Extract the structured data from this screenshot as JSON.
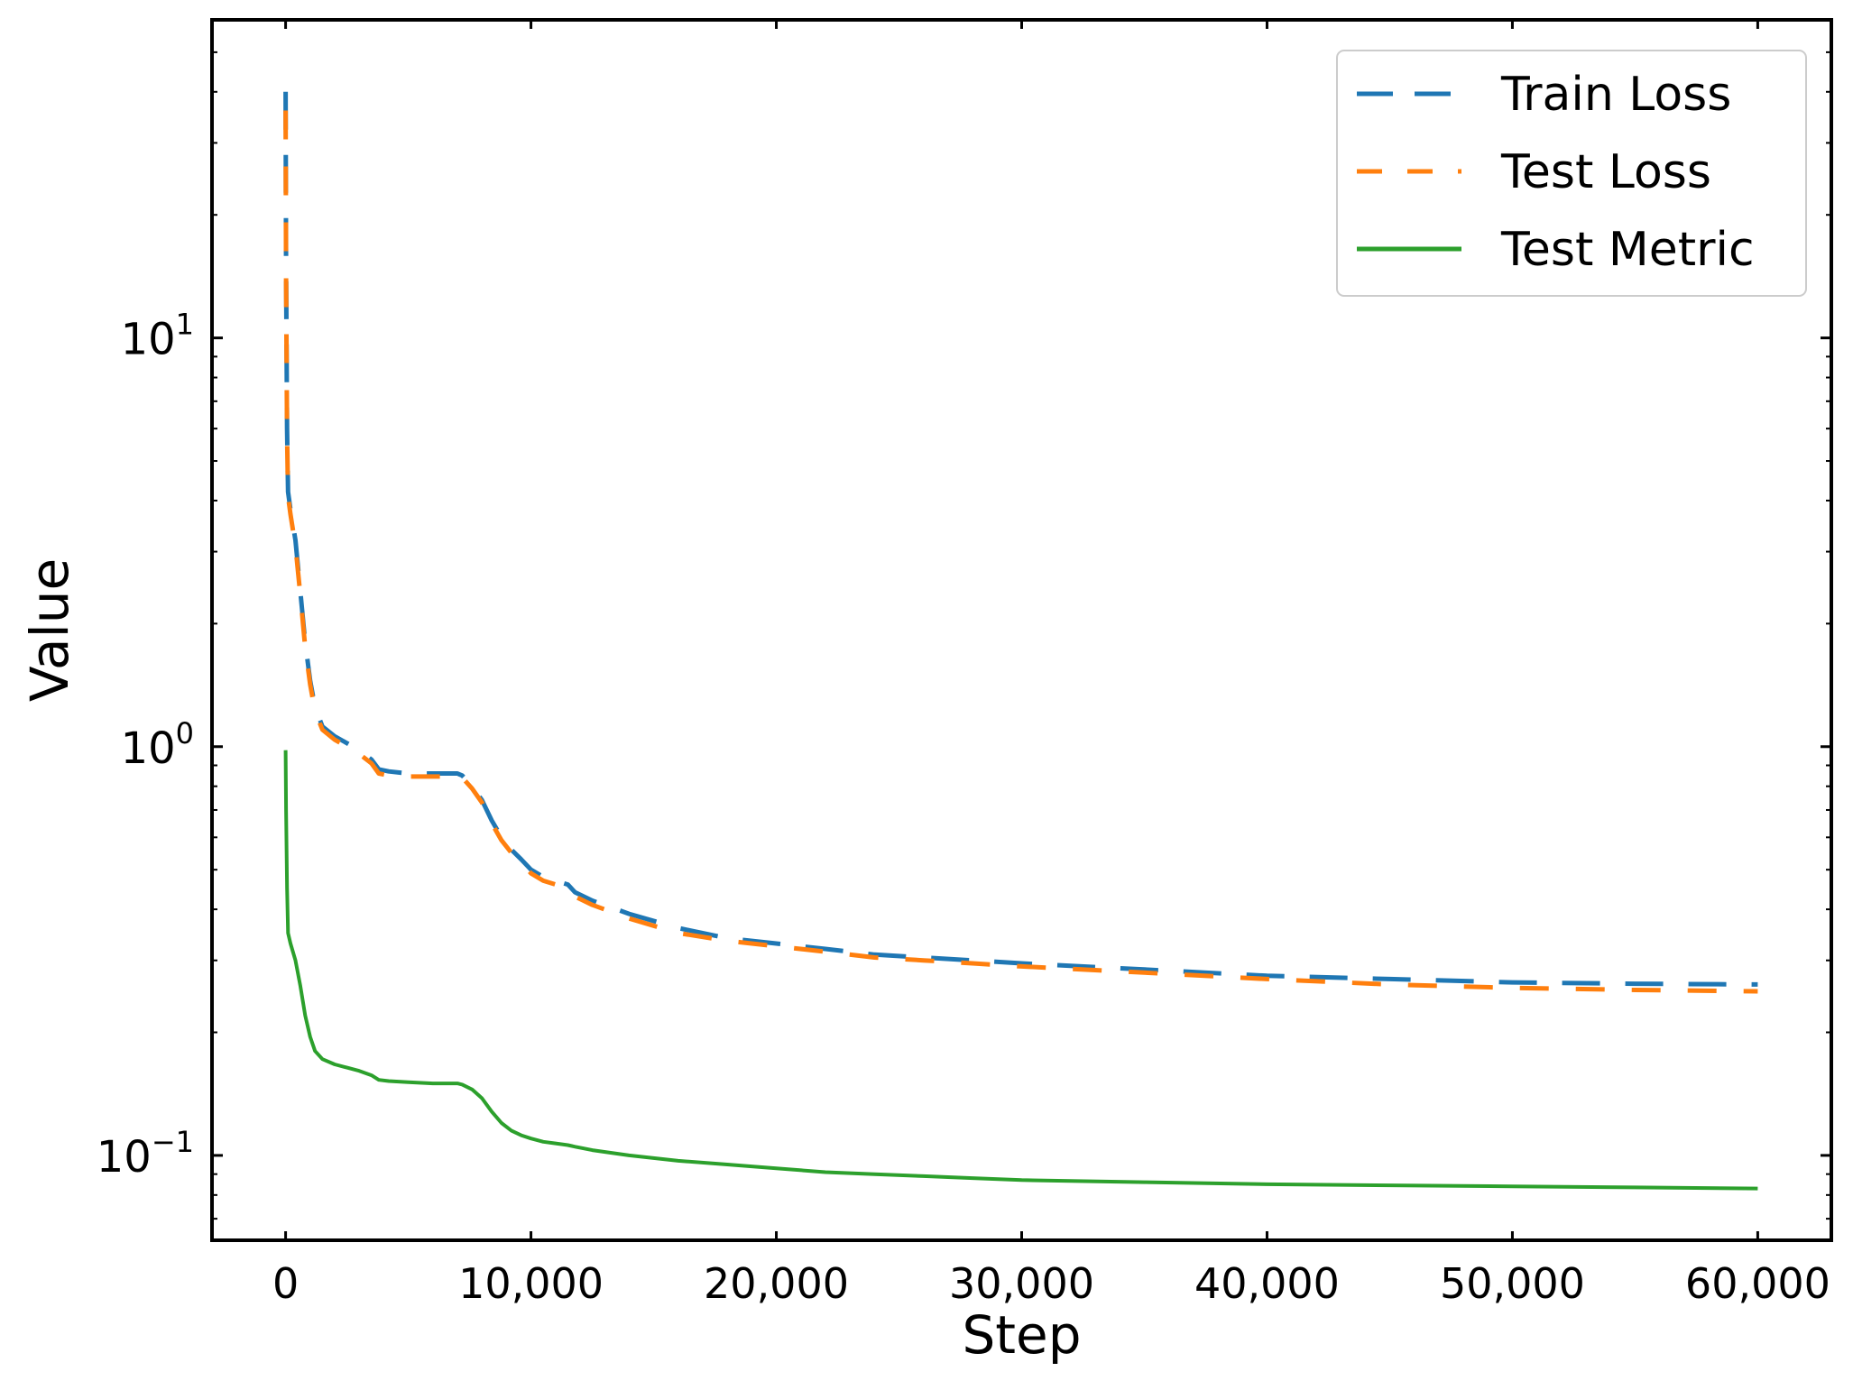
{
  "chart_data": {
    "type": "line",
    "title": "",
    "xlabel": "Step",
    "ylabel": "Value",
    "xlim": [
      -3000,
      63000
    ],
    "ylim": [
      0.062,
      60
    ],
    "yscale": "log",
    "grid": false,
    "legend_position": "top-right",
    "x_ticks": [
      {
        "value": 0,
        "label": "0"
      },
      {
        "value": 10000,
        "label": "10,000"
      },
      {
        "value": 20000,
        "label": "20,000"
      },
      {
        "value": 30000,
        "label": "30,000"
      },
      {
        "value": 40000,
        "label": "40,000"
      },
      {
        "value": 50000,
        "label": "50,000"
      },
      {
        "value": 60000,
        "label": "60,000"
      }
    ],
    "y_ticks": [
      {
        "value": 0.1,
        "base": "10",
        "exp": "−1"
      },
      {
        "value": 1,
        "base": "10",
        "exp": "0"
      },
      {
        "value": 10,
        "base": "10",
        "exp": "1"
      }
    ],
    "series": [
      {
        "name": "Train Loss",
        "color": "#1f77b4",
        "style": "dashed",
        "x": [
          0,
          20,
          60,
          100,
          200,
          400,
          600,
          800,
          1000,
          1200,
          1500,
          2000,
          2500,
          3000,
          3500,
          3800,
          4200,
          5000,
          6000,
          7000,
          7200,
          7600,
          8000,
          8400,
          8800,
          9200,
          9600,
          10000,
          10500,
          11000,
          11500,
          11800,
          12500,
          14000,
          16000,
          18000,
          20000,
          22000,
          24000,
          26000,
          28000,
          30000,
          35000,
          40000,
          45000,
          50000,
          55000,
          60000
        ],
        "y": [
          40,
          15,
          6,
          4.2,
          3.8,
          3.2,
          2.4,
          1.8,
          1.45,
          1.25,
          1.12,
          1.06,
          1.02,
          0.98,
          0.93,
          0.88,
          0.87,
          0.86,
          0.86,
          0.86,
          0.85,
          0.8,
          0.74,
          0.66,
          0.6,
          0.56,
          0.53,
          0.5,
          0.48,
          0.47,
          0.46,
          0.44,
          0.42,
          0.39,
          0.36,
          0.34,
          0.33,
          0.32,
          0.31,
          0.305,
          0.3,
          0.295,
          0.285,
          0.275,
          0.27,
          0.265,
          0.263,
          0.262
        ]
      },
      {
        "name": "Test Loss",
        "color": "#ff7f0e",
        "style": "dashed",
        "x": [
          0,
          20,
          60,
          100,
          200,
          400,
          600,
          800,
          1000,
          1200,
          1500,
          2000,
          2500,
          3000,
          3500,
          3800,
          4200,
          5000,
          6000,
          7000,
          7200,
          7600,
          8000,
          8400,
          8800,
          9200,
          9600,
          10000,
          10500,
          11000,
          11500,
          11800,
          12500,
          14000,
          16000,
          18000,
          20000,
          22000,
          24000,
          26000,
          28000,
          30000,
          35000,
          40000,
          45000,
          50000,
          55000,
          60000
        ],
        "y": [
          36,
          14,
          5.8,
          4.1,
          3.7,
          3.1,
          2.35,
          1.75,
          1.42,
          1.22,
          1.1,
          1.04,
          1.0,
          0.96,
          0.91,
          0.86,
          0.85,
          0.845,
          0.845,
          0.845,
          0.84,
          0.79,
          0.73,
          0.65,
          0.59,
          0.55,
          0.52,
          0.49,
          0.47,
          0.46,
          0.45,
          0.43,
          0.41,
          0.38,
          0.35,
          0.335,
          0.325,
          0.315,
          0.305,
          0.3,
          0.295,
          0.29,
          0.28,
          0.27,
          0.262,
          0.257,
          0.254,
          0.252
        ]
      },
      {
        "name": "Test Metric",
        "color": "#2ca02c",
        "style": "solid",
        "x": [
          0,
          20,
          60,
          100,
          200,
          400,
          600,
          800,
          1000,
          1200,
          1500,
          2000,
          2500,
          3000,
          3500,
          3800,
          4200,
          5000,
          6000,
          7000,
          7200,
          7600,
          8000,
          8400,
          8800,
          9200,
          9600,
          10000,
          10500,
          11000,
          11500,
          11800,
          12500,
          14000,
          16000,
          18000,
          20000,
          22000,
          24000,
          26000,
          28000,
          30000,
          35000,
          40000,
          45000,
          50000,
          55000,
          60000
        ],
        "y": [
          0.98,
          0.7,
          0.45,
          0.35,
          0.33,
          0.3,
          0.26,
          0.22,
          0.195,
          0.18,
          0.172,
          0.167,
          0.164,
          0.161,
          0.157,
          0.153,
          0.152,
          0.151,
          0.15,
          0.15,
          0.149,
          0.145,
          0.138,
          0.128,
          0.12,
          0.115,
          0.112,
          0.11,
          0.108,
          0.107,
          0.106,
          0.105,
          0.103,
          0.1,
          0.097,
          0.095,
          0.093,
          0.091,
          0.09,
          0.089,
          0.088,
          0.087,
          0.086,
          0.085,
          0.0845,
          0.084,
          0.0835,
          0.083
        ]
      }
    ]
  }
}
